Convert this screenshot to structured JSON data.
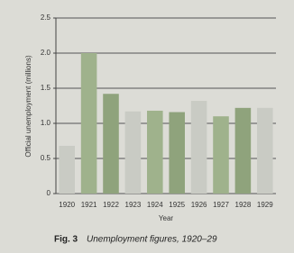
{
  "chart_data": {
    "type": "bar",
    "y_label": "Official unemployment (millions)",
    "x_label": "Year",
    "caption_label": "Fig. 3",
    "caption": "Unemployment figures, 1920–29",
    "categories": [
      "1920",
      "1921",
      "1922",
      "1923",
      "1924",
      "1925",
      "1926",
      "1927",
      "1928",
      "1929"
    ],
    "values": [
      0.68,
      2.0,
      1.42,
      1.17,
      1.18,
      1.16,
      1.32,
      1.1,
      1.22,
      1.22
    ],
    "colors": [
      "#c9cbc4",
      "#9fb28c",
      "#8fa37c",
      "#c9cbc4",
      "#9fb28c",
      "#8fa37c",
      "#c9cbc4",
      "#9fb28c",
      "#8fa37c",
      "#c9cbc4"
    ],
    "ylim": [
      0,
      2.5
    ],
    "yticks": [
      0,
      0.5,
      {
        "value": 1,
        "label": "1.0"
      },
      1.5,
      {
        "value": 2,
        "label": "2.0"
      },
      2.5
    ],
    "grid": true
  }
}
